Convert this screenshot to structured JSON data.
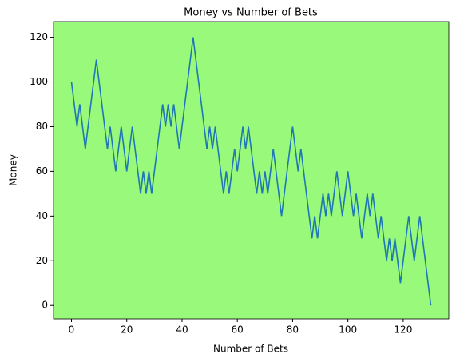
{
  "chart_data": {
    "type": "line",
    "title": "Money vs Number of Bets",
    "x_label": "Number of Bets",
    "y_label": "Money",
    "x": [
      0,
      1,
      2,
      3,
      4,
      5,
      6,
      7,
      8,
      9,
      10,
      11,
      12,
      13,
      14,
      15,
      16,
      17,
      18,
      19,
      20,
      21,
      22,
      23,
      24,
      25,
      26,
      27,
      28,
      29,
      30,
      31,
      32,
      33,
      34,
      35,
      36,
      37,
      38,
      39,
      40,
      41,
      42,
      43,
      44,
      45,
      46,
      47,
      48,
      49,
      50,
      51,
      52,
      53,
      54,
      55,
      56,
      57,
      58,
      59,
      60,
      61,
      62,
      63,
      64,
      65,
      66,
      67,
      68,
      69,
      70,
      71,
      72,
      73,
      74,
      75,
      76,
      77,
      78,
      79,
      80,
      81,
      82,
      83,
      84,
      85,
      86,
      87,
      88,
      89,
      90,
      91,
      92,
      93,
      94,
      95,
      96,
      97,
      98,
      99,
      100,
      101,
      102,
      103,
      104,
      105,
      106,
      107,
      108,
      109,
      110,
      111,
      112,
      113,
      114,
      115,
      116,
      117,
      118,
      119,
      120,
      121,
      122,
      123,
      124,
      125,
      126,
      127,
      128,
      129,
      130
    ],
    "series": [
      {
        "name": "Money",
        "color": "#1f77b4",
        "values": [
          100,
          90,
          80,
          90,
          80,
          70,
          80,
          90,
          100,
          110,
          100,
          90,
          80,
          70,
          80,
          70,
          60,
          70,
          80,
          70,
          60,
          70,
          80,
          70,
          60,
          50,
          60,
          50,
          60,
          50,
          60,
          70,
          80,
          90,
          80,
          90,
          80,
          90,
          80,
          70,
          80,
          90,
          100,
          110,
          120,
          110,
          100,
          90,
          80,
          70,
          80,
          70,
          80,
          70,
          60,
          50,
          60,
          50,
          60,
          70,
          60,
          70,
          80,
          70,
          80,
          70,
          60,
          50,
          60,
          50,
          60,
          50,
          60,
          70,
          60,
          50,
          40,
          50,
          60,
          70,
          80,
          70,
          60,
          70,
          60,
          50,
          40,
          30,
          40,
          30,
          40,
          50,
          40,
          50,
          40,
          50,
          60,
          50,
          40,
          50,
          60,
          50,
          40,
          50,
          40,
          30,
          40,
          50,
          40,
          50,
          40,
          30,
          40,
          30,
          20,
          30,
          20,
          30,
          20,
          10,
          20,
          30,
          40,
          30,
          20,
          30,
          40,
          30,
          20,
          10,
          0
        ]
      }
    ],
    "xlim": [
      -6.5,
      136.5
    ],
    "ylim": [
      -6,
      127
    ],
    "xticks": [
      0,
      20,
      40,
      60,
      80,
      100,
      120
    ],
    "yticks": [
      0,
      20,
      40,
      60,
      80,
      100,
      120
    ],
    "background": "#98f97b",
    "grid": false
  }
}
